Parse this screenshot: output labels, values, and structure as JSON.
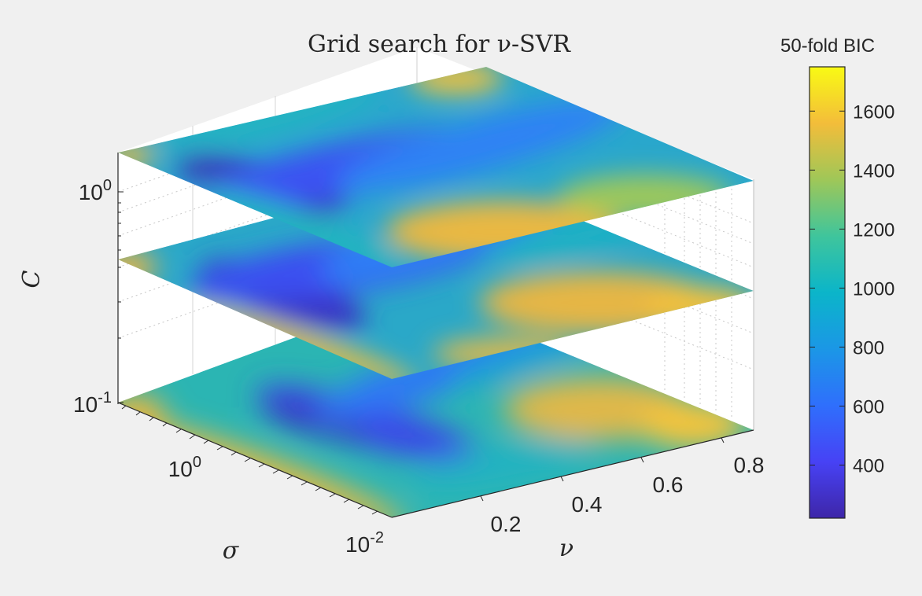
{
  "chart_data": {
    "type": "heatmap",
    "title": "Grid search for ν-SVR",
    "zlabel": "C",
    "xlabel": "σ",
    "ylabel": "ν",
    "grid": true,
    "z_axis": {
      "scale": "log",
      "ticks": [
        {
          "value": 1,
          "base": "10",
          "exp": "0"
        },
        {
          "value": 0.1,
          "base": "10",
          "exp": "-1"
        }
      ]
    },
    "sigma_axis": {
      "scale": "log",
      "ticks": [
        {
          "value": 1,
          "base": "10",
          "exp": "0"
        },
        {
          "value": 0.01,
          "base": "10",
          "exp": "-2"
        }
      ]
    },
    "nu_axis": {
      "ticks": [
        "0.2",
        "0.4",
        "0.6",
        "0.8"
      ]
    },
    "colorbar": {
      "label": "50-fold BIC",
      "range": [
        220,
        1750
      ],
      "ticks": [
        "1600",
        "1400",
        "1200",
        "1000",
        "800",
        "600",
        "400"
      ],
      "tick_values": [
        1600,
        1400,
        1200,
        1000,
        800,
        600,
        400
      ],
      "colormap": "parula"
    },
    "slices": [
      {
        "C": 0.1,
        "min_bic": 350,
        "max_bic": 1600
      },
      {
        "C": 0.3,
        "min_bic": 250,
        "max_bic": 1600
      },
      {
        "C": 1,
        "min_bic": 240,
        "max_bic": 1650
      }
    ]
  }
}
